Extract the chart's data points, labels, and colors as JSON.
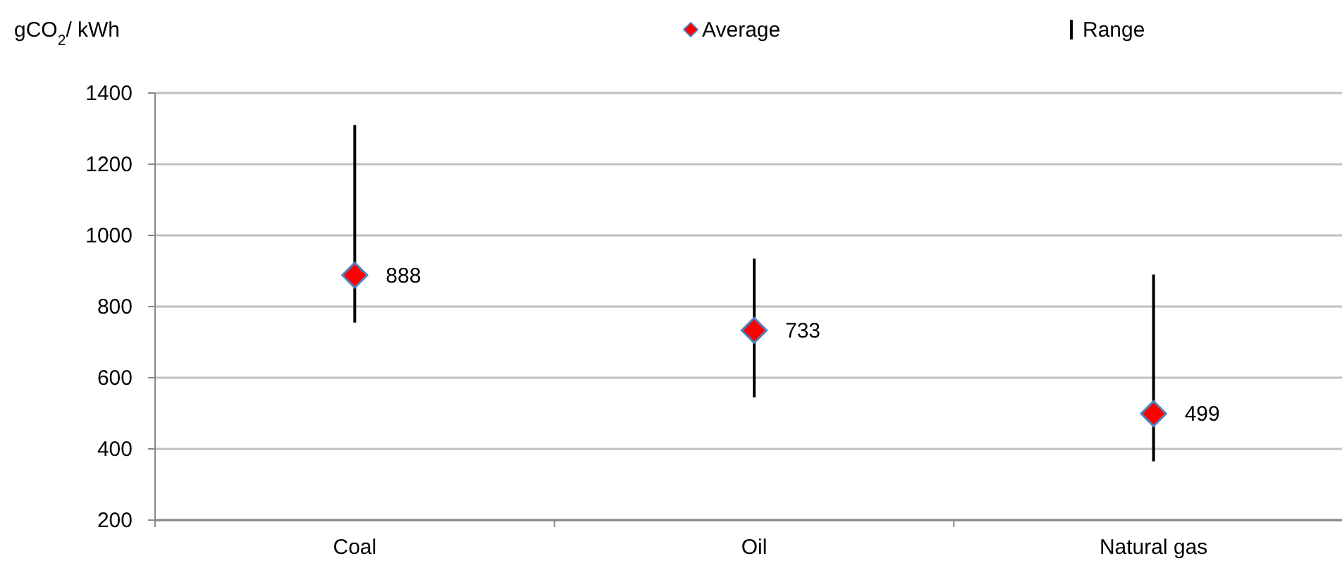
{
  "chart_data": {
    "type": "scatter",
    "ylabel": "gCO$_{2}$/ kWh",
    "categories": [
      "Coal",
      "Oil",
      "Natural gas"
    ],
    "series": [
      {
        "name": "Average",
        "color": "#ff0000",
        "marker": "diamond",
        "values": [
          888,
          733,
          499
        ],
        "value_labels": [
          "888",
          "733",
          "499"
        ]
      },
      {
        "name": "Range",
        "type": "bar",
        "color": "#000000",
        "base": [
          755,
          545,
          365
        ],
        "values": [
          555,
          390,
          525
        ]
      }
    ],
    "ylim": [
      200,
      1400
    ],
    "yticks": [
      200,
      400,
      600,
      800,
      1000,
      1200,
      1400
    ],
    "grid": "y",
    "legend": "top"
  }
}
